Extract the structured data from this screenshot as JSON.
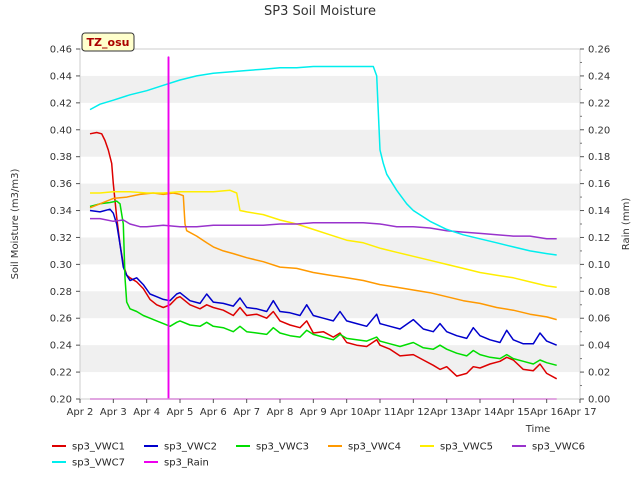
{
  "chart_data": {
    "type": "line",
    "title": "SP3 Soil Moisture",
    "badge": "TZ_osu",
    "xlabel": "Time",
    "ylabel": "Soil Moisture (m3/m3)",
    "y2label": "Rain (mm)",
    "ylim": [
      0.2,
      0.46
    ],
    "y2lim": [
      0.0,
      0.26
    ],
    "xlim": [
      2,
      17
    ],
    "grid": "horizontal bands",
    "legend_position": "bottom",
    "x_ticks": [
      {
        "x": 2,
        "label": "Apr 2"
      },
      {
        "x": 3,
        "label": "Apr 3"
      },
      {
        "x": 4,
        "label": "Apr 4"
      },
      {
        "x": 5,
        "label": "Apr 5"
      },
      {
        "x": 6,
        "label": "Apr 6"
      },
      {
        "x": 7,
        "label": "Apr 7"
      },
      {
        "x": 8,
        "label": "Apr 8"
      },
      {
        "x": 9,
        "label": "Apr 9"
      },
      {
        "x": 10,
        "label": "Apr 10"
      },
      {
        "x": 11,
        "label": "Apr 11"
      },
      {
        "x": 12,
        "label": "Apr 12"
      },
      {
        "x": 13,
        "label": "Apr 13"
      },
      {
        "x": 14,
        "label": "Apr 14"
      },
      {
        "x": 15,
        "label": "Apr 15"
      },
      {
        "x": 16,
        "label": "Apr 16"
      },
      {
        "x": 17,
        "label": "Apr 17"
      }
    ],
    "y_ticks": [
      "0.20",
      "0.22",
      "0.24",
      "0.26",
      "0.28",
      "0.30",
      "0.32",
      "0.34",
      "0.36",
      "0.38",
      "0.40",
      "0.42",
      "0.44",
      "0.46"
    ],
    "y2_ticks": [
      "0.00",
      "0.02",
      "0.04",
      "0.06",
      "0.08",
      "0.10",
      "0.12",
      "0.14",
      "0.16",
      "0.18",
      "0.20",
      "0.22",
      "0.24",
      "0.26"
    ],
    "series": [
      {
        "name": "sp3_VWC1",
        "color": "#dd0000",
        "axis": "left",
        "x": [
          2.3,
          2.5,
          2.65,
          2.75,
          2.85,
          2.95,
          3.0,
          3.1,
          3.2,
          3.3,
          3.4,
          3.5,
          3.7,
          3.9,
          4.1,
          4.3,
          4.5,
          4.7,
          4.9,
          5.0,
          5.3,
          5.6,
          5.8,
          6.0,
          6.3,
          6.6,
          6.8,
          7.0,
          7.3,
          7.6,
          7.8,
          8.0,
          8.3,
          8.6,
          8.8,
          9.0,
          9.3,
          9.6,
          9.8,
          10.0,
          10.3,
          10.6,
          10.9,
          11.0,
          11.3,
          11.6,
          12.0,
          12.3,
          12.6,
          12.8,
          13.0,
          13.3,
          13.6,
          13.8,
          14.0,
          14.3,
          14.6,
          14.8,
          15.0,
          15.3,
          15.6,
          15.8,
          16.0,
          16.3
        ],
        "y": [
          0.397,
          0.398,
          0.397,
          0.392,
          0.385,
          0.375,
          0.36,
          0.335,
          0.315,
          0.3,
          0.292,
          0.29,
          0.287,
          0.282,
          0.274,
          0.27,
          0.268,
          0.27,
          0.275,
          0.276,
          0.27,
          0.267,
          0.27,
          0.268,
          0.266,
          0.262,
          0.268,
          0.262,
          0.263,
          0.26,
          0.265,
          0.258,
          0.255,
          0.253,
          0.258,
          0.249,
          0.25,
          0.246,
          0.249,
          0.242,
          0.24,
          0.239,
          0.244,
          0.24,
          0.237,
          0.232,
          0.233,
          0.229,
          0.225,
          0.222,
          0.224,
          0.217,
          0.219,
          0.224,
          0.223,
          0.226,
          0.228,
          0.231,
          0.229,
          0.222,
          0.221,
          0.226,
          0.219,
          0.215
        ]
      },
      {
        "name": "sp3_VWC2",
        "color": "#0000cc",
        "axis": "left",
        "x": [
          2.3,
          2.6,
          2.9,
          3.0,
          3.1,
          3.2,
          3.3,
          3.4,
          3.5,
          3.7,
          3.9,
          4.1,
          4.3,
          4.5,
          4.7,
          4.9,
          5.0,
          5.3,
          5.6,
          5.8,
          6.0,
          6.3,
          6.6,
          6.8,
          7.0,
          7.3,
          7.6,
          7.8,
          8.0,
          8.3,
          8.6,
          8.8,
          9.0,
          9.3,
          9.6,
          9.8,
          10.0,
          10.3,
          10.6,
          10.9,
          11.0,
          11.3,
          11.6,
          12.0,
          12.3,
          12.6,
          12.8,
          13.0,
          13.3,
          13.6,
          13.8,
          14.0,
          14.3,
          14.6,
          14.8,
          15.0,
          15.3,
          15.6,
          15.8,
          16.0,
          16.3
        ],
        "y": [
          0.34,
          0.339,
          0.341,
          0.338,
          0.33,
          0.315,
          0.298,
          0.292,
          0.288,
          0.29,
          0.285,
          0.278,
          0.276,
          0.274,
          0.273,
          0.278,
          0.279,
          0.273,
          0.271,
          0.278,
          0.272,
          0.271,
          0.269,
          0.275,
          0.268,
          0.267,
          0.265,
          0.273,
          0.265,
          0.264,
          0.262,
          0.27,
          0.262,
          0.26,
          0.258,
          0.265,
          0.258,
          0.256,
          0.254,
          0.263,
          0.256,
          0.254,
          0.252,
          0.259,
          0.252,
          0.25,
          0.256,
          0.25,
          0.247,
          0.245,
          0.253,
          0.247,
          0.244,
          0.242,
          0.251,
          0.244,
          0.241,
          0.241,
          0.249,
          0.243,
          0.24
        ]
      },
      {
        "name": "sp3_VWC3",
        "color": "#00dd00",
        "axis": "left",
        "x": [
          2.3,
          2.6,
          2.9,
          3.1,
          3.2,
          3.3,
          3.35,
          3.4,
          3.5,
          3.7,
          3.9,
          4.1,
          4.3,
          4.5,
          4.7,
          4.9,
          5.0,
          5.3,
          5.6,
          5.8,
          6.0,
          6.3,
          6.6,
          6.8,
          7.0,
          7.3,
          7.6,
          7.8,
          8.0,
          8.3,
          8.6,
          8.8,
          9.0,
          9.3,
          9.6,
          9.8,
          10.0,
          10.3,
          10.6,
          10.9,
          11.0,
          11.3,
          11.6,
          12.0,
          12.3,
          12.6,
          12.8,
          13.0,
          13.3,
          13.6,
          13.8,
          14.0,
          14.3,
          14.6,
          14.8,
          15.0,
          15.3,
          15.6,
          15.8,
          16.0,
          16.3
        ],
        "y": [
          0.343,
          0.345,
          0.346,
          0.347,
          0.345,
          0.33,
          0.29,
          0.272,
          0.267,
          0.265,
          0.262,
          0.26,
          0.258,
          0.256,
          0.254,
          0.257,
          0.258,
          0.255,
          0.254,
          0.257,
          0.254,
          0.253,
          0.25,
          0.254,
          0.25,
          0.249,
          0.248,
          0.253,
          0.249,
          0.247,
          0.246,
          0.251,
          0.248,
          0.246,
          0.244,
          0.248,
          0.245,
          0.244,
          0.243,
          0.246,
          0.243,
          0.241,
          0.239,
          0.242,
          0.238,
          0.237,
          0.24,
          0.237,
          0.234,
          0.232,
          0.236,
          0.233,
          0.231,
          0.23,
          0.233,
          0.23,
          0.228,
          0.226,
          0.229,
          0.227,
          0.225
        ]
      },
      {
        "name": "sp3_VWC4",
        "color": "#ff9900",
        "axis": "left",
        "x": [
          2.3,
          2.6,
          3.0,
          3.4,
          3.8,
          4.2,
          4.5,
          4.8,
          5.0,
          5.1,
          5.15,
          5.2,
          5.5,
          5.8,
          6.0,
          6.3,
          6.6,
          7.0,
          7.5,
          8.0,
          8.5,
          9.0,
          9.5,
          10.0,
          10.5,
          11.0,
          11.5,
          12.0,
          12.5,
          13.0,
          13.5,
          14.0,
          14.5,
          15.0,
          15.5,
          16.0,
          16.3
        ],
        "y": [
          0.342,
          0.345,
          0.349,
          0.35,
          0.352,
          0.353,
          0.352,
          0.353,
          0.352,
          0.351,
          0.33,
          0.325,
          0.321,
          0.316,
          0.313,
          0.31,
          0.308,
          0.305,
          0.302,
          0.298,
          0.297,
          0.294,
          0.292,
          0.29,
          0.288,
          0.285,
          0.283,
          0.281,
          0.279,
          0.276,
          0.273,
          0.271,
          0.268,
          0.266,
          0.263,
          0.261,
          0.259
        ]
      },
      {
        "name": "sp3_VWC5",
        "color": "#ffee00",
        "axis": "left",
        "x": [
          2.3,
          2.6,
          3.0,
          3.5,
          4.0,
          4.5,
          5.0,
          5.5,
          6.0,
          6.5,
          6.7,
          6.8,
          7.0,
          7.5,
          8.0,
          8.5,
          9.0,
          9.5,
          10.0,
          10.5,
          11.0,
          11.5,
          12.0,
          12.5,
          13.0,
          13.5,
          14.0,
          14.5,
          15.0,
          15.5,
          16.0,
          16.3
        ],
        "y": [
          0.353,
          0.353,
          0.354,
          0.354,
          0.353,
          0.353,
          0.354,
          0.354,
          0.354,
          0.355,
          0.353,
          0.34,
          0.339,
          0.337,
          0.333,
          0.33,
          0.326,
          0.322,
          0.318,
          0.316,
          0.312,
          0.309,
          0.306,
          0.303,
          0.3,
          0.297,
          0.294,
          0.292,
          0.29,
          0.287,
          0.284,
          0.283
        ]
      },
      {
        "name": "sp3_VWC6",
        "color": "#9933cc",
        "axis": "left",
        "x": [
          2.3,
          2.6,
          3.0,
          3.3,
          3.5,
          3.8,
          4.0,
          4.5,
          5.0,
          5.5,
          6.0,
          6.5,
          7.0,
          7.5,
          8.0,
          8.5,
          9.0,
          9.5,
          10.0,
          10.5,
          11.0,
          11.5,
          12.0,
          12.5,
          13.0,
          13.5,
          14.0,
          14.5,
          15.0,
          15.5,
          16.0,
          16.3
        ],
        "y": [
          0.334,
          0.334,
          0.332,
          0.333,
          0.33,
          0.328,
          0.328,
          0.329,
          0.328,
          0.328,
          0.329,
          0.329,
          0.329,
          0.329,
          0.33,
          0.33,
          0.331,
          0.331,
          0.331,
          0.331,
          0.33,
          0.328,
          0.328,
          0.327,
          0.325,
          0.324,
          0.323,
          0.322,
          0.321,
          0.321,
          0.319,
          0.319
        ]
      },
      {
        "name": "sp3_VWC7",
        "color": "#00eeee",
        "axis": "left",
        "x": [
          2.3,
          2.6,
          3.0,
          3.5,
          4.0,
          4.5,
          5.0,
          5.5,
          6.0,
          6.5,
          7.0,
          7.5,
          8.0,
          8.5,
          9.0,
          9.5,
          10.0,
          10.5,
          10.8,
          10.9,
          11.0,
          11.1,
          11.2,
          11.5,
          11.8,
          12.0,
          12.5,
          13.0,
          13.5,
          14.0,
          14.5,
          15.0,
          15.5,
          16.0,
          16.3
        ],
        "y": [
          0.415,
          0.419,
          0.422,
          0.426,
          0.429,
          0.433,
          0.437,
          0.44,
          0.442,
          0.443,
          0.444,
          0.445,
          0.446,
          0.446,
          0.447,
          0.447,
          0.447,
          0.447,
          0.447,
          0.44,
          0.385,
          0.375,
          0.367,
          0.355,
          0.345,
          0.34,
          0.332,
          0.326,
          0.322,
          0.319,
          0.316,
          0.313,
          0.31,
          0.308,
          0.307
        ]
      },
      {
        "name": "sp3_Rain",
        "color": "#ee00ee",
        "axis": "right",
        "x": [
          2.3,
          4.65,
          4.65,
          4.66,
          4.66,
          16.3
        ],
        "y": [
          0.0,
          0.0,
          0.254,
          0.254,
          0.0,
          0.0
        ]
      }
    ]
  }
}
